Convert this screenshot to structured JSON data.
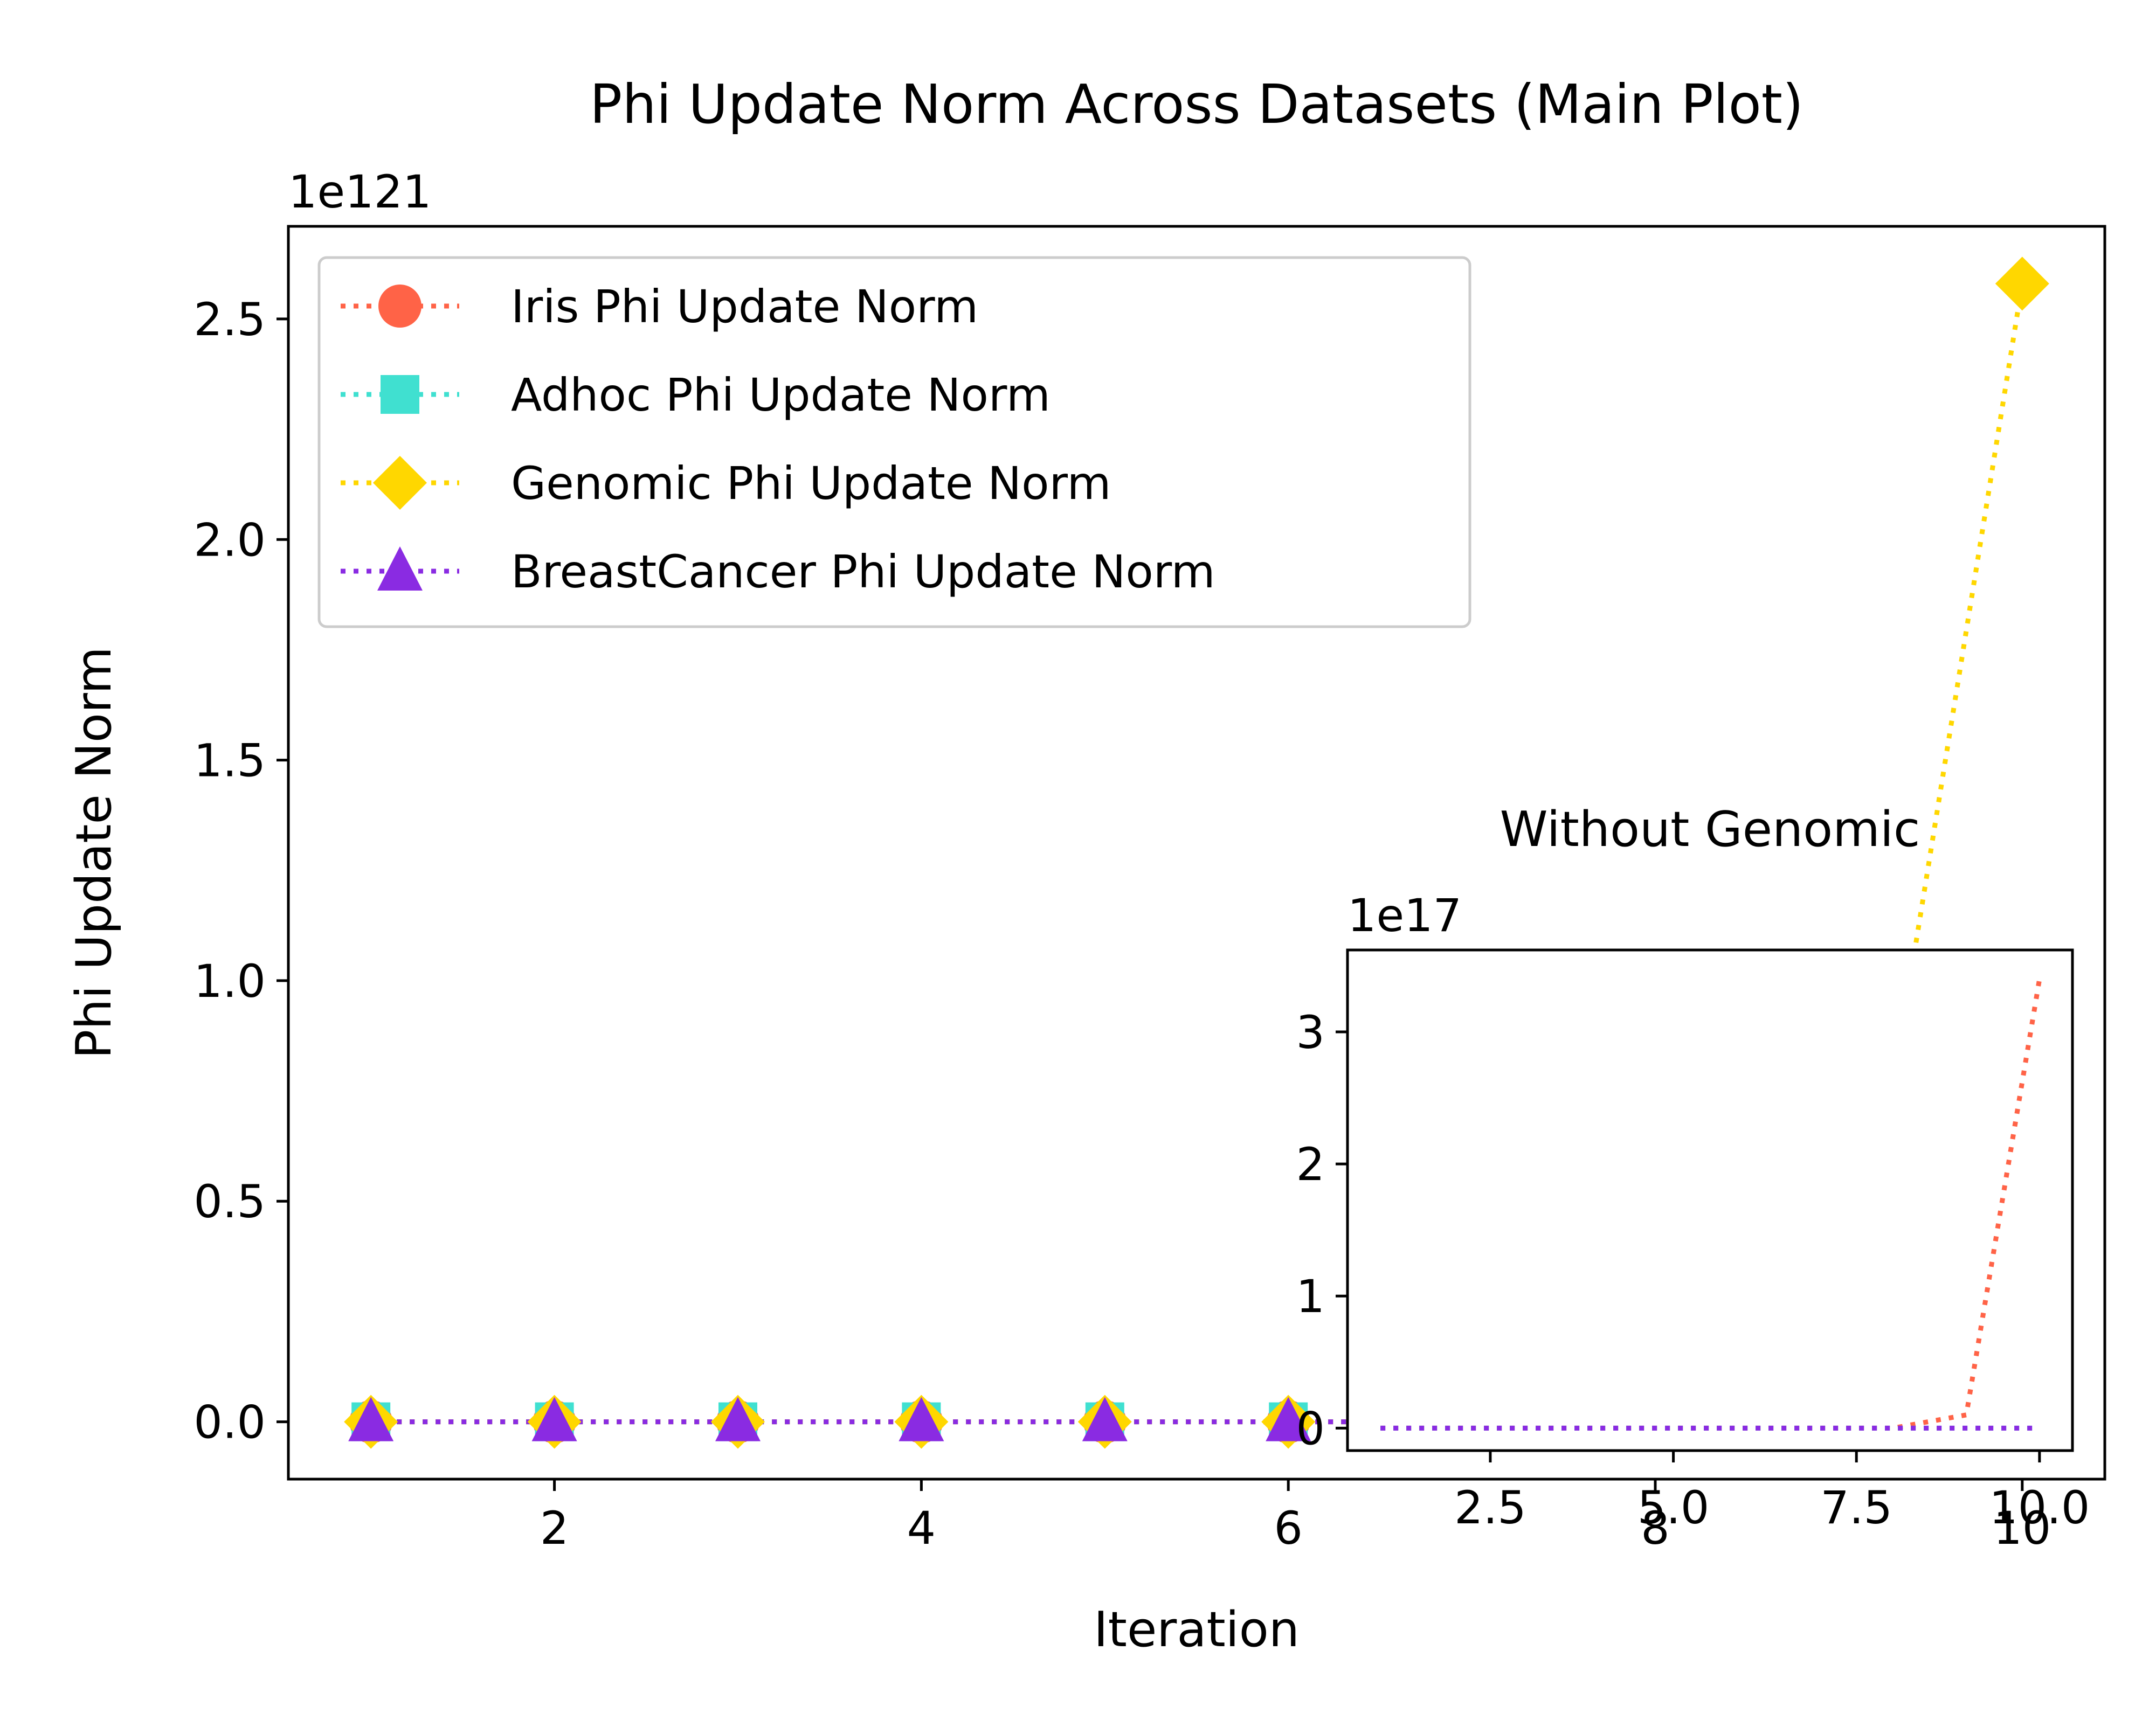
{
  "chart_data": [
    {
      "type": "line",
      "title": "Phi Update Norm Across Datasets (Main Plot)",
      "xlabel": "Iteration",
      "ylabel": "Phi Update Norm",
      "offset_text": "1e121",
      "x_ticks": [
        2,
        4,
        6,
        8,
        10
      ],
      "y_ticks": [
        0.0,
        0.5,
        1.0,
        1.5,
        2.0,
        2.5
      ],
      "x_tick_labels": [
        "2",
        "4",
        "6",
        "8",
        "10"
      ],
      "y_tick_labels": [
        "0.0",
        "0.5",
        "1.0",
        "1.5",
        "2.0",
        "2.5"
      ],
      "xlim": [
        0.55,
        10.45
      ],
      "ylim": [
        -0.13,
        2.71
      ],
      "y_scale_exponent": 121,
      "grid": false,
      "legend_position": "top-left",
      "x": [
        1,
        2,
        3,
        4,
        5,
        6,
        7,
        8,
        9,
        10
      ],
      "series": [
        {
          "name": "Iris Phi Update Norm",
          "color": "#ff6347",
          "marker": "circle",
          "linestyle": "dotted",
          "values": [
            0,
            0,
            0,
            0,
            0,
            0,
            0,
            0,
            0,
            0
          ]
        },
        {
          "name": "Adhoc Phi Update Norm",
          "color": "#40e0d0",
          "marker": "square",
          "linestyle": "dotted",
          "values": [
            0,
            0,
            0,
            0,
            0,
            0,
            0,
            0,
            0,
            0
          ]
        },
        {
          "name": "Genomic Phi Update Norm",
          "color": "#ffd700",
          "marker": "diamond",
          "linestyle": "dotted",
          "values": [
            0,
            0,
            0,
            0,
            0,
            0,
            0,
            0,
            0,
            2.58
          ]
        },
        {
          "name": "BreastCancer Phi Update Norm",
          "color": "#8a2be2",
          "marker": "triangle",
          "linestyle": "dotted",
          "values": [
            0,
            0,
            0,
            0,
            0,
            0,
            0,
            0,
            0,
            0
          ]
        }
      ]
    },
    {
      "type": "line",
      "title": "Without Genomic",
      "offset_text": "1e17",
      "x_ticks": [
        2.5,
        5.0,
        7.5,
        10.0
      ],
      "y_ticks": [
        0,
        1,
        2,
        3
      ],
      "x_tick_labels": [
        "2.5",
        "5.0",
        "7.5",
        "10.0"
      ],
      "y_tick_labels": [
        "0",
        "1",
        "2",
        "3"
      ],
      "xlim": [
        0.55,
        10.45
      ],
      "ylim": [
        -0.17,
        3.62
      ],
      "y_scale_exponent": 17,
      "grid": false,
      "x": [
        1,
        2,
        3,
        4,
        5,
        6,
        7,
        8,
        9,
        10
      ],
      "series": [
        {
          "name": "Iris Phi Update Norm",
          "color": "#ff6347",
          "linestyle": "dotted",
          "values": [
            0,
            0,
            0,
            0,
            0,
            0,
            0,
            0,
            0.1,
            3.4
          ]
        },
        {
          "name": "Adhoc Phi Update Norm",
          "color": "#40e0d0",
          "linestyle": "dotted",
          "values": [
            0,
            0,
            0,
            0,
            0,
            0,
            0,
            0,
            0,
            0
          ]
        },
        {
          "name": "BreastCancer Phi Update Norm",
          "color": "#8a2be2",
          "linestyle": "dotted",
          "values": [
            0,
            0,
            0,
            0,
            0,
            0,
            0,
            0,
            0,
            0
          ]
        }
      ]
    }
  ]
}
